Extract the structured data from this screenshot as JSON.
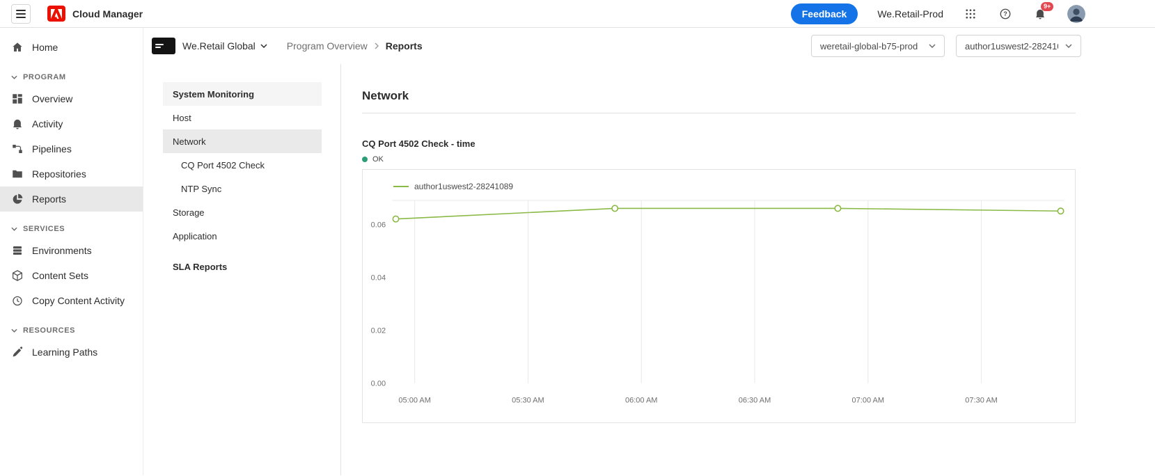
{
  "topbar": {
    "app_title": "Cloud Manager",
    "feedback_label": "Feedback",
    "org_name": "We.Retail-Prod",
    "notification_count": "9+"
  },
  "sidebar": {
    "home_label": "Home",
    "sections": [
      {
        "label": "PROGRAM",
        "items": [
          {
            "label": "Overview"
          },
          {
            "label": "Activity"
          },
          {
            "label": "Pipelines"
          },
          {
            "label": "Repositories"
          },
          {
            "label": "Reports",
            "selected": true
          }
        ]
      },
      {
        "label": "SERVICES",
        "items": [
          {
            "label": "Environments"
          },
          {
            "label": "Content Sets"
          },
          {
            "label": "Copy Content Activity"
          }
        ]
      },
      {
        "label": "RESOURCES",
        "items": [
          {
            "label": "Learning Paths"
          }
        ]
      }
    ]
  },
  "program_header": {
    "program_name": "We.Retail Global",
    "breadcrumb_parent": "Program Overview",
    "breadcrumb_current": "Reports",
    "environment_selector": "weretail-global-b75-prod",
    "instance_selector": "author1uswest2-282410..."
  },
  "subnav": {
    "items": [
      {
        "label": "System Monitoring",
        "group_header": true
      },
      {
        "label": "Host"
      },
      {
        "label": "Network",
        "selected": true
      },
      {
        "label": "CQ Port 4502 Check",
        "indented": true
      },
      {
        "label": "NTP Sync",
        "indented": true
      },
      {
        "label": "Storage"
      },
      {
        "label": "Application"
      },
      {
        "label": "SLA Reports",
        "group_header": true
      }
    ]
  },
  "main": {
    "page_title": "Network",
    "chart_title": "CQ Port 4502 Check - time",
    "status_label": "OK"
  },
  "colors": {
    "accent_blue": "#1473E6",
    "adobe_red": "#EB1000",
    "status_ok_green": "#2D9D78",
    "chart_line_green": "#8AB946",
    "notification_badge_red": "#E34850"
  },
  "chart_data": {
    "type": "line",
    "title": "CQ Port 4502 Check - time",
    "status": "OK",
    "legend_position": "top-left",
    "grid": "vertical-gridlines-and-top-border",
    "x_domain_minutes": [
      294,
      472
    ],
    "x_ticks": [
      {
        "minute": 300,
        "label": "05:00 AM"
      },
      {
        "minute": 330,
        "label": "05:30 AM"
      },
      {
        "minute": 360,
        "label": "06:00 AM"
      },
      {
        "minute": 390,
        "label": "06:30 AM"
      },
      {
        "minute": 420,
        "label": "07:00 AM"
      },
      {
        "minute": 450,
        "label": "07:30 AM"
      }
    ],
    "y_domain": [
      0,
      0.069
    ],
    "y_ticks": [
      {
        "value": 0.0,
        "label": "0.00"
      },
      {
        "value": 0.02,
        "label": "0.02"
      },
      {
        "value": 0.04,
        "label": "0.04"
      },
      {
        "value": 0.06,
        "label": "0.06"
      }
    ],
    "series": [
      {
        "name": "author1uswest2-28241089",
        "color": "#8AB946",
        "marker": "circle-open",
        "x_minutes": [
          295,
          353,
          412,
          471
        ],
        "values": [
          0.062,
          0.066,
          0.066,
          0.065
        ]
      }
    ]
  }
}
